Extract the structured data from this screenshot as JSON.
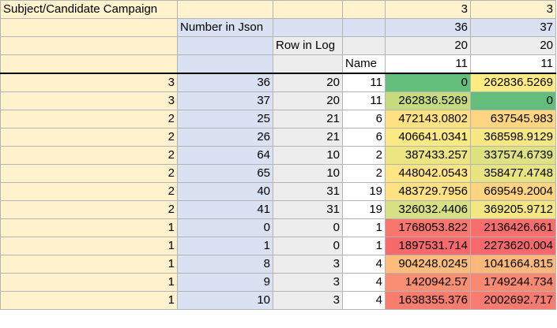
{
  "header": {
    "title": "Subject/Candidate Campaign",
    "number_label": "Number in Json",
    "row_label": "Row in Log",
    "name_label": "Name",
    "cols": [
      {
        "subject": "3",
        "number": "36",
        "row": "20",
        "name": "11"
      },
      {
        "subject": "3",
        "number": "37",
        "row": "20",
        "name": "11"
      }
    ]
  },
  "rows": [
    {
      "subject": "3",
      "number": "36",
      "row": "20",
      "name": "11",
      "v1": "0",
      "v2": "262836.5269",
      "c1": "#63be7b",
      "c2": "#ffeb84"
    },
    {
      "subject": "3",
      "number": "37",
      "row": "20",
      "name": "11",
      "v1": "262836.5269",
      "v2": "0",
      "c1": "#c6da80",
      "c2": "#63be7b"
    },
    {
      "subject": "2",
      "number": "25",
      "row": "21",
      "name": "6",
      "v1": "472143.0802",
      "v2": "637545.983",
      "c1": "#fee182",
      "c2": "#fed580"
    },
    {
      "subject": "2",
      "number": "26",
      "row": "21",
      "name": "6",
      "v1": "406641.0341",
      "v2": "368598.9129",
      "c1": "#fbe983",
      "c2": "#f7e883"
    },
    {
      "subject": "2",
      "number": "64",
      "row": "10",
      "name": "2",
      "v1": "387433.257",
      "v2": "337574.6739",
      "c1": "#ece582",
      "c2": "#dfe282"
    },
    {
      "subject": "2",
      "number": "65",
      "row": "10",
      "name": "2",
      "v1": "448042.0543",
      "v2": "358477.4748",
      "c1": "#ffe583",
      "c2": "#e8e482"
    },
    {
      "subject": "2",
      "number": "40",
      "row": "31",
      "name": "19",
      "v1": "483729.7956",
      "v2": "669549.2004",
      "c1": "#fee182",
      "c2": "#fed480"
    },
    {
      "subject": "2",
      "number": "41",
      "row": "31",
      "name": "19",
      "v1": "326032.4406",
      "v2": "369205.9712",
      "c1": "#d7e082",
      "c2": "#f4e783"
    },
    {
      "subject": "1",
      "number": "0",
      "row": "0",
      "name": "1",
      "v1": "1768053.822",
      "v2": "2136426.661",
      "c1": "#f8766d",
      "c2": "#f86e6c"
    },
    {
      "subject": "1",
      "number": "1",
      "row": "0",
      "name": "1",
      "v1": "1897531.714",
      "v2": "2273620.004",
      "c1": "#f8696b",
      "c2": "#f8696b"
    },
    {
      "subject": "1",
      "number": "8",
      "row": "3",
      "name": "4",
      "v1": "904248.0245",
      "v2": "1041664.815",
      "c1": "#fcbc7b",
      "c2": "#fcb87a"
    },
    {
      "subject": "1",
      "number": "9",
      "row": "3",
      "name": "4",
      "v1": "1420942.57",
      "v2": "1749244.734",
      "c1": "#fa8e72",
      "c2": "#fa8971"
    },
    {
      "subject": "1",
      "number": "10",
      "row": "3",
      "name": "4",
      "v1": "1638355.376",
      "v2": "2002692.717",
      "c1": "#f97d6e",
      "c2": "#f97a6e"
    }
  ]
}
